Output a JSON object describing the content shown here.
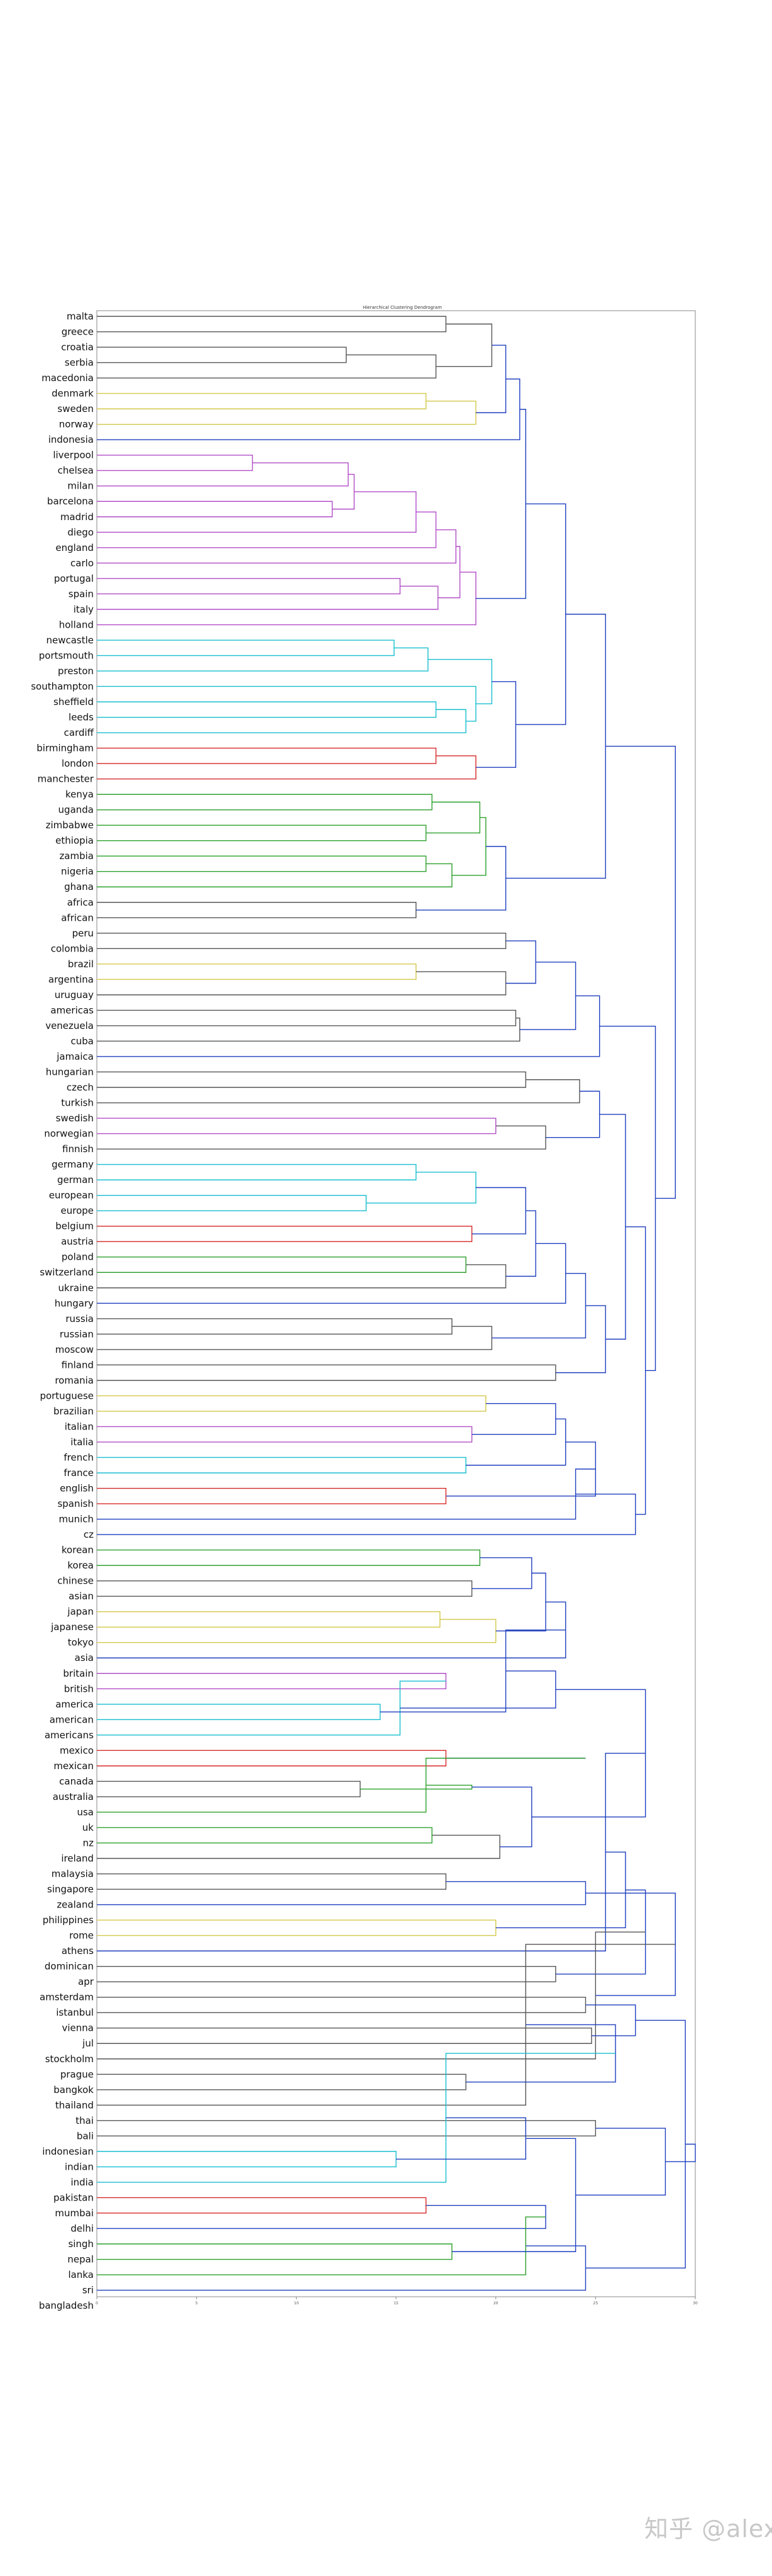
{
  "chart_data": {
    "type": "dendrogram",
    "title": "Hierarchical Clustering Dendrogram",
    "orientation": "left",
    "xlim": [
      0,
      30
    ],
    "xticks": [
      0,
      5,
      10,
      15,
      20,
      25,
      30
    ],
    "grid": false,
    "legend": "none",
    "colors": {
      "C0": "#1f3fbf",
      "C1": "#17becf",
      "C2": "#2ca02c",
      "C3": "#d62728",
      "C4": "#b14cc7",
      "C5": "#d4c84a",
      "C6": "#555555"
    },
    "leaves": [
      "malta",
      "greece",
      "croatia",
      "serbia",
      "macedonia",
      "denmark",
      "sweden",
      "norway",
      "indonesia",
      "liverpool",
      "chelsea",
      "milan",
      "barcelona",
      "madrid",
      "diego",
      "england",
      "carlo",
      "portugal",
      "spain",
      "italy",
      "holland",
      "newcastle",
      "portsmouth",
      "preston",
      "southampton",
      "sheffield",
      "leeds",
      "cardiff",
      "birmingham",
      "london",
      "manchester",
      "kenya",
      "uganda",
      "zimbabwe",
      "ethiopia",
      "zambia",
      "nigeria",
      "ghana",
      "africa",
      "african",
      "peru",
      "colombia",
      "brazil",
      "argentina",
      "uruguay",
      "americas",
      "venezuela",
      "cuba",
      "jamaica",
      "hungarian",
      "czech",
      "turkish",
      "swedish",
      "norwegian",
      "finnish",
      "germany",
      "german",
      "european",
      "europe",
      "belgium",
      "austria",
      "poland",
      "switzerland",
      "ukraine",
      "hungary",
      "russia",
      "russian",
      "moscow",
      "finland",
      "romania",
      "portuguese",
      "brazilian",
      "italian",
      "italia",
      "french",
      "france",
      "english",
      "spanish",
      "munich",
      "cz",
      "korean",
      "korea",
      "chinese",
      "asian",
      "japan",
      "japanese",
      "tokyo",
      "asia",
      "britain",
      "british",
      "america",
      "american",
      "americans",
      "mexico",
      "mexican",
      "canada",
      "australia",
      "usa",
      "uk",
      "nz",
      "ireland",
      "malaysia",
      "singapore",
      "zealand",
      "philippines",
      "rome",
      "athens",
      "dominican",
      "apr",
      "amsterdam",
      "istanbul",
      "vienna",
      "jul",
      "stockholm",
      "prague",
      "bangkok",
      "thailand",
      "thai",
      "bali",
      "indonesian",
      "indian",
      "india",
      "pakistan",
      "mumbai",
      "delhi",
      "singh",
      "nepal",
      "lanka",
      "sri",
      "bangladesh"
    ],
    "merges": [
      {
        "a": "L0",
        "b": "L1",
        "h": 17.5,
        "color": "C6"
      },
      {
        "a": "L2",
        "b": "L3",
        "h": 12.5,
        "color": "C6"
      },
      {
        "a": "L4",
        "b": "m1",
        "h": 17.0,
        "color": "C6"
      },
      {
        "a": "m0",
        "b": "m2",
        "h": 19.8,
        "color": "C6"
      },
      {
        "a": "L5",
        "b": "L6",
        "h": 16.5,
        "color": "C5"
      },
      {
        "a": "m4",
        "b": "L7",
        "h": 19.0,
        "color": "C5"
      },
      {
        "a": "m3",
        "b": "m5",
        "h": 20.5,
        "color": "C0"
      },
      {
        "a": "m6",
        "b": "L8",
        "h": 21.2,
        "color": "C0"
      },
      {
        "a": "L9",
        "b": "L10",
        "h": 7.8,
        "color": "C4"
      },
      {
        "a": "m8",
        "b": "L11",
        "h": 12.6,
        "color": "C4"
      },
      {
        "a": "L12",
        "b": "L13",
        "h": 11.8,
        "color": "C4"
      },
      {
        "a": "m9",
        "b": "m10",
        "h": 12.9,
        "color": "C4"
      },
      {
        "a": "m11",
        "b": "L14",
        "h": 16.0,
        "color": "C4"
      },
      {
        "a": "m12",
        "b": "L15",
        "h": 17.0,
        "color": "C4"
      },
      {
        "a": "m13",
        "b": "L16",
        "h": 18.0,
        "color": "C4"
      },
      {
        "a": "L17",
        "b": "L18",
        "h": 15.2,
        "color": "C4"
      },
      {
        "a": "m15",
        "b": "L19",
        "h": 17.1,
        "color": "C4"
      },
      {
        "a": "m14",
        "b": "m16",
        "h": 18.2,
        "color": "C4"
      },
      {
        "a": "m17",
        "b": "L20",
        "h": 19.0,
        "color": "C4"
      },
      {
        "a": "m7",
        "b": "m18",
        "h": 21.5,
        "color": "C0"
      },
      {
        "a": "L21",
        "b": "L22",
        "h": 14.9,
        "color": "C1"
      },
      {
        "a": "m20",
        "b": "L23",
        "h": 16.6,
        "color": "C1"
      },
      {
        "a": "L25",
        "b": "L26",
        "h": 17.0,
        "color": "C1"
      },
      {
        "a": "m22",
        "b": "L27",
        "h": 18.5,
        "color": "C1"
      },
      {
        "a": "L24",
        "b": "m23",
        "h": 19.0,
        "color": "C1"
      },
      {
        "a": "m21",
        "b": "m24",
        "h": 19.8,
        "color": "C1"
      },
      {
        "a": "L28",
        "b": "L29",
        "h": 17.0,
        "color": "C3"
      },
      {
        "a": "m26",
        "b": "L30",
        "h": 19.0,
        "color": "C3"
      },
      {
        "a": "m25",
        "b": "m27",
        "h": 21.0,
        "color": "C0"
      },
      {
        "a": "m19",
        "b": "m28",
        "h": 23.5,
        "color": "C0"
      },
      {
        "a": "L31",
        "b": "L32",
        "h": 16.8,
        "color": "C2"
      },
      {
        "a": "L33",
        "b": "L34",
        "h": 16.5,
        "color": "C2"
      },
      {
        "a": "m30",
        "b": "m31",
        "h": 19.2,
        "color": "C2"
      },
      {
        "a": "L35",
        "b": "L36",
        "h": 16.5,
        "color": "C2"
      },
      {
        "a": "m33",
        "b": "L37",
        "h": 17.8,
        "color": "C2"
      },
      {
        "a": "m32",
        "b": "m34",
        "h": 19.5,
        "color": "C2"
      },
      {
        "a": "L38",
        "b": "L39",
        "h": 16.0,
        "color": "C6"
      },
      {
        "a": "m35",
        "b": "m36",
        "h": 20.5,
        "color": "C0"
      },
      {
        "a": "m29",
        "b": "m37",
        "h": 25.5,
        "color": "C0"
      },
      {
        "a": "L40",
        "b": "L41",
        "h": 20.5,
        "color": "C6"
      },
      {
        "a": "L42",
        "b": "L43",
        "h": 16.0,
        "color": "C5"
      },
      {
        "a": "m40",
        "b": "L44",
        "h": 20.5,
        "color": "C6"
      },
      {
        "a": "m39",
        "b": "m41",
        "h": 22.0,
        "color": "C0"
      },
      {
        "a": "L45",
        "b": "L46",
        "h": 21.0,
        "color": "C6"
      },
      {
        "a": "m43",
        "b": "L47",
        "h": 21.2,
        "color": "C6"
      },
      {
        "a": "m42",
        "b": "m44",
        "h": 24.0,
        "color": "C0"
      },
      {
        "a": "m45",
        "b": "L48",
        "h": 25.2,
        "color": "C0"
      },
      {
        "a": "L49",
        "b": "L50",
        "h": 21.5,
        "color": "C6"
      },
      {
        "a": "m47",
        "b": "L51",
        "h": 24.2,
        "color": "C6"
      },
      {
        "a": "L52",
        "b": "L53",
        "h": 20.0,
        "color": "C4"
      },
      {
        "a": "m49",
        "b": "L54",
        "h": 22.5,
        "color": "C6"
      },
      {
        "a": "m48",
        "b": "m50",
        "h": 25.2,
        "color": "C0"
      },
      {
        "a": "L55",
        "b": "L56",
        "h": 16.0,
        "color": "C1"
      },
      {
        "a": "L57",
        "b": "L58",
        "h": 13.5,
        "color": "C1"
      },
      {
        "a": "m52",
        "b": "m53",
        "h": 19.0,
        "color": "C1"
      },
      {
        "a": "L59",
        "b": "L60",
        "h": 18.8,
        "color": "C3"
      },
      {
        "a": "m54",
        "b": "m55",
        "h": 21.5,
        "color": "C0"
      },
      {
        "a": "L61",
        "b": "L62",
        "h": 18.5,
        "color": "C2"
      },
      {
        "a": "m57",
        "b": "L63",
        "h": 20.5,
        "color": "C6"
      },
      {
        "a": "m56",
        "b": "m58",
        "h": 22.0,
        "color": "C0"
      },
      {
        "a": "m59",
        "b": "L64",
        "h": 23.5,
        "color": "C0"
      },
      {
        "a": "L65",
        "b": "L66",
        "h": 17.8,
        "color": "C6"
      },
      {
        "a": "m61",
        "b": "L67",
        "h": 19.8,
        "color": "C6"
      },
      {
        "a": "m60",
        "b": "m62",
        "h": 24.5,
        "color": "C0"
      },
      {
        "a": "L68",
        "b": "L69",
        "h": 23.0,
        "color": "C6"
      },
      {
        "a": "m63",
        "b": "m64",
        "h": 25.5,
        "color": "C0"
      },
      {
        "a": "m51",
        "b": "m65",
        "h": 26.5,
        "color": "C0"
      },
      {
        "a": "L70",
        "b": "L71",
        "h": 19.5,
        "color": "C5"
      },
      {
        "a": "L72",
        "b": "L73",
        "h": 18.8,
        "color": "C4"
      },
      {
        "a": "m67",
        "b": "m68",
        "h": 23.0,
        "color": "C0"
      },
      {
        "a": "L74",
        "b": "L75",
        "h": 18.5,
        "color": "C1"
      },
      {
        "a": "m69",
        "b": "m70",
        "h": 23.5,
        "color": "C0"
      },
      {
        "a": "L76",
        "b": "L77",
        "h": 17.5,
        "color": "C3"
      },
      {
        "a": "m71",
        "b": "m72",
        "h": 25.0,
        "color": "C0"
      },
      {
        "a": "m73",
        "b": "L78",
        "h": 24.0,
        "color": "C0"
      },
      {
        "a": "m74",
        "b": "L79",
        "h": 27.0,
        "color": "C0"
      },
      {
        "a": "m66",
        "b": "m75",
        "h": 27.5,
        "color": "C0"
      },
      {
        "a": "m46",
        "b": "m76",
        "h": 28.0,
        "color": "C0"
      },
      {
        "a": "L80",
        "b": "L81",
        "h": 19.2,
        "color": "C2"
      },
      {
        "a": "L82",
        "b": "L83",
        "h": 18.8,
        "color": "C6"
      },
      {
        "a": "m78",
        "b": "m79",
        "h": 21.8,
        "color": "C0"
      },
      {
        "a": "L84",
        "b": "L85",
        "h": 17.2,
        "color": "C5"
      },
      {
        "a": "m81",
        "b": "L86",
        "h": 20.0,
        "color": "C5"
      },
      {
        "a": "m80",
        "b": "m82",
        "h": 22.5,
        "color": "C0"
      },
      {
        "a": "m83",
        "b": "L87",
        "h": 23.5,
        "color": "C0"
      },
      {
        "a": "L88",
        "b": "L89",
        "h": 17.5,
        "color": "C4"
      },
      {
        "a": "L90",
        "b": "L91",
        "h": 14.2,
        "color": "C1"
      },
      {
        "a": "m85",
        "b": "L92",
        "h": 15.2,
        "color": "C1"
      },
      {
        "a": "m84",
        "b": "m86",
        "h": 20.5,
        "color": "C0"
      },
      {
        "a": "L93",
        "b": "L94",
        "h": 17.5,
        "color": "C3"
      },
      {
        "a": "m87",
        "b": "m88",
        "h": 23.0,
        "color": "C0"
      },
      {
        "a": "m84b",
        "b": "m89",
        "h": 24.5,
        "color": "C0"
      },
      {
        "a": "L95",
        "b": "L96",
        "h": 13.2,
        "color": "C6"
      },
      {
        "a": "m91",
        "b": "L97",
        "h": 16.5,
        "color": "C2"
      },
      {
        "a": "L98",
        "b": "L99",
        "h": 16.8,
        "color": "C2"
      },
      {
        "a": "m92",
        "b": "m93",
        "h": 18.8,
        "color": "C2"
      },
      {
        "a": "m94",
        "b": "L100",
        "h": 20.2,
        "color": "C6"
      },
      {
        "a": "L101",
        "b": "L102",
        "h": 17.5,
        "color": "C6"
      },
      {
        "a": "m95",
        "b": "m96",
        "h": 21.8,
        "color": "C0"
      },
      {
        "a": "m97",
        "b": "L103",
        "h": 24.5,
        "color": "C0"
      },
      {
        "a": "m90",
        "b": "m98",
        "h": 27.5,
        "color": "C0"
      },
      {
        "a": "L104",
        "b": "L105",
        "h": 20.0,
        "color": "C5"
      },
      {
        "a": "m100",
        "b": "L106",
        "h": 25.5,
        "color": "C0"
      },
      {
        "a": "L107",
        "b": "L108",
        "h": 23.0,
        "color": "C6"
      },
      {
        "a": "m101",
        "b": "m102",
        "h": 26.5,
        "color": "C0"
      },
      {
        "a": "L109",
        "b": "L110",
        "h": 24.5,
        "color": "C6"
      },
      {
        "a": "m103",
        "b": "m104",
        "h": 27.5,
        "color": "C0"
      },
      {
        "a": "L111",
        "b": "L112",
        "h": 24.8,
        "color": "C6"
      },
      {
        "a": "m106",
        "b": "L113",
        "h": 25.0,
        "color": "C6"
      },
      {
        "a": "m105",
        "b": "m107",
        "h": 27.0,
        "color": "C0"
      },
      {
        "a": "m99",
        "b": "m108",
        "h": 29.0,
        "color": "C0"
      },
      {
        "a": "L114",
        "b": "L115",
        "h": 18.5,
        "color": "C6"
      },
      {
        "a": "m110",
        "b": "L116",
        "h": 21.5,
        "color": "C6"
      },
      {
        "a": "L117",
        "b": "L118",
        "h": 25.0,
        "color": "C6"
      },
      {
        "a": "m111",
        "b": "m112",
        "h": 26.0,
        "color": "C0"
      },
      {
        "a": "L119",
        "b": "L120",
        "h": 15.0,
        "color": "C1"
      },
      {
        "a": "m114",
        "b": "L121",
        "h": 17.5,
        "color": "C1"
      },
      {
        "a": "L122",
        "b": "L123",
        "h": 16.5,
        "color": "C3"
      },
      {
        "a": "m115",
        "b": "m116",
        "h": 21.5,
        "color": "C0"
      },
      {
        "a": "m117",
        "b": "L124",
        "h": 22.5,
        "color": "C0"
      },
      {
        "a": "L125",
        "b": "L126",
        "h": 17.8,
        "color": "C2"
      },
      {
        "a": "m119",
        "b": "L127",
        "h": 21.5,
        "color": "C2"
      },
      {
        "a": "m118",
        "b": "m120",
        "h": 24.0,
        "color": "C0"
      },
      {
        "a": "m121",
        "b": "L128",
        "h": 24.5,
        "color": "C0"
      },
      {
        "a": "m113",
        "b": "m122",
        "h": 28.5,
        "color": "C0"
      },
      {
        "a": "m109",
        "b": "m123",
        "h": 29.5,
        "color": "C0"
      },
      {
        "a": "m38",
        "b": "m77",
        "h": 29.0,
        "color": "C0"
      },
      {
        "a": "m125",
        "b": "m124",
        "h": 30.0,
        "color": "C0"
      }
    ]
  },
  "watermark": "知乎 @alex"
}
